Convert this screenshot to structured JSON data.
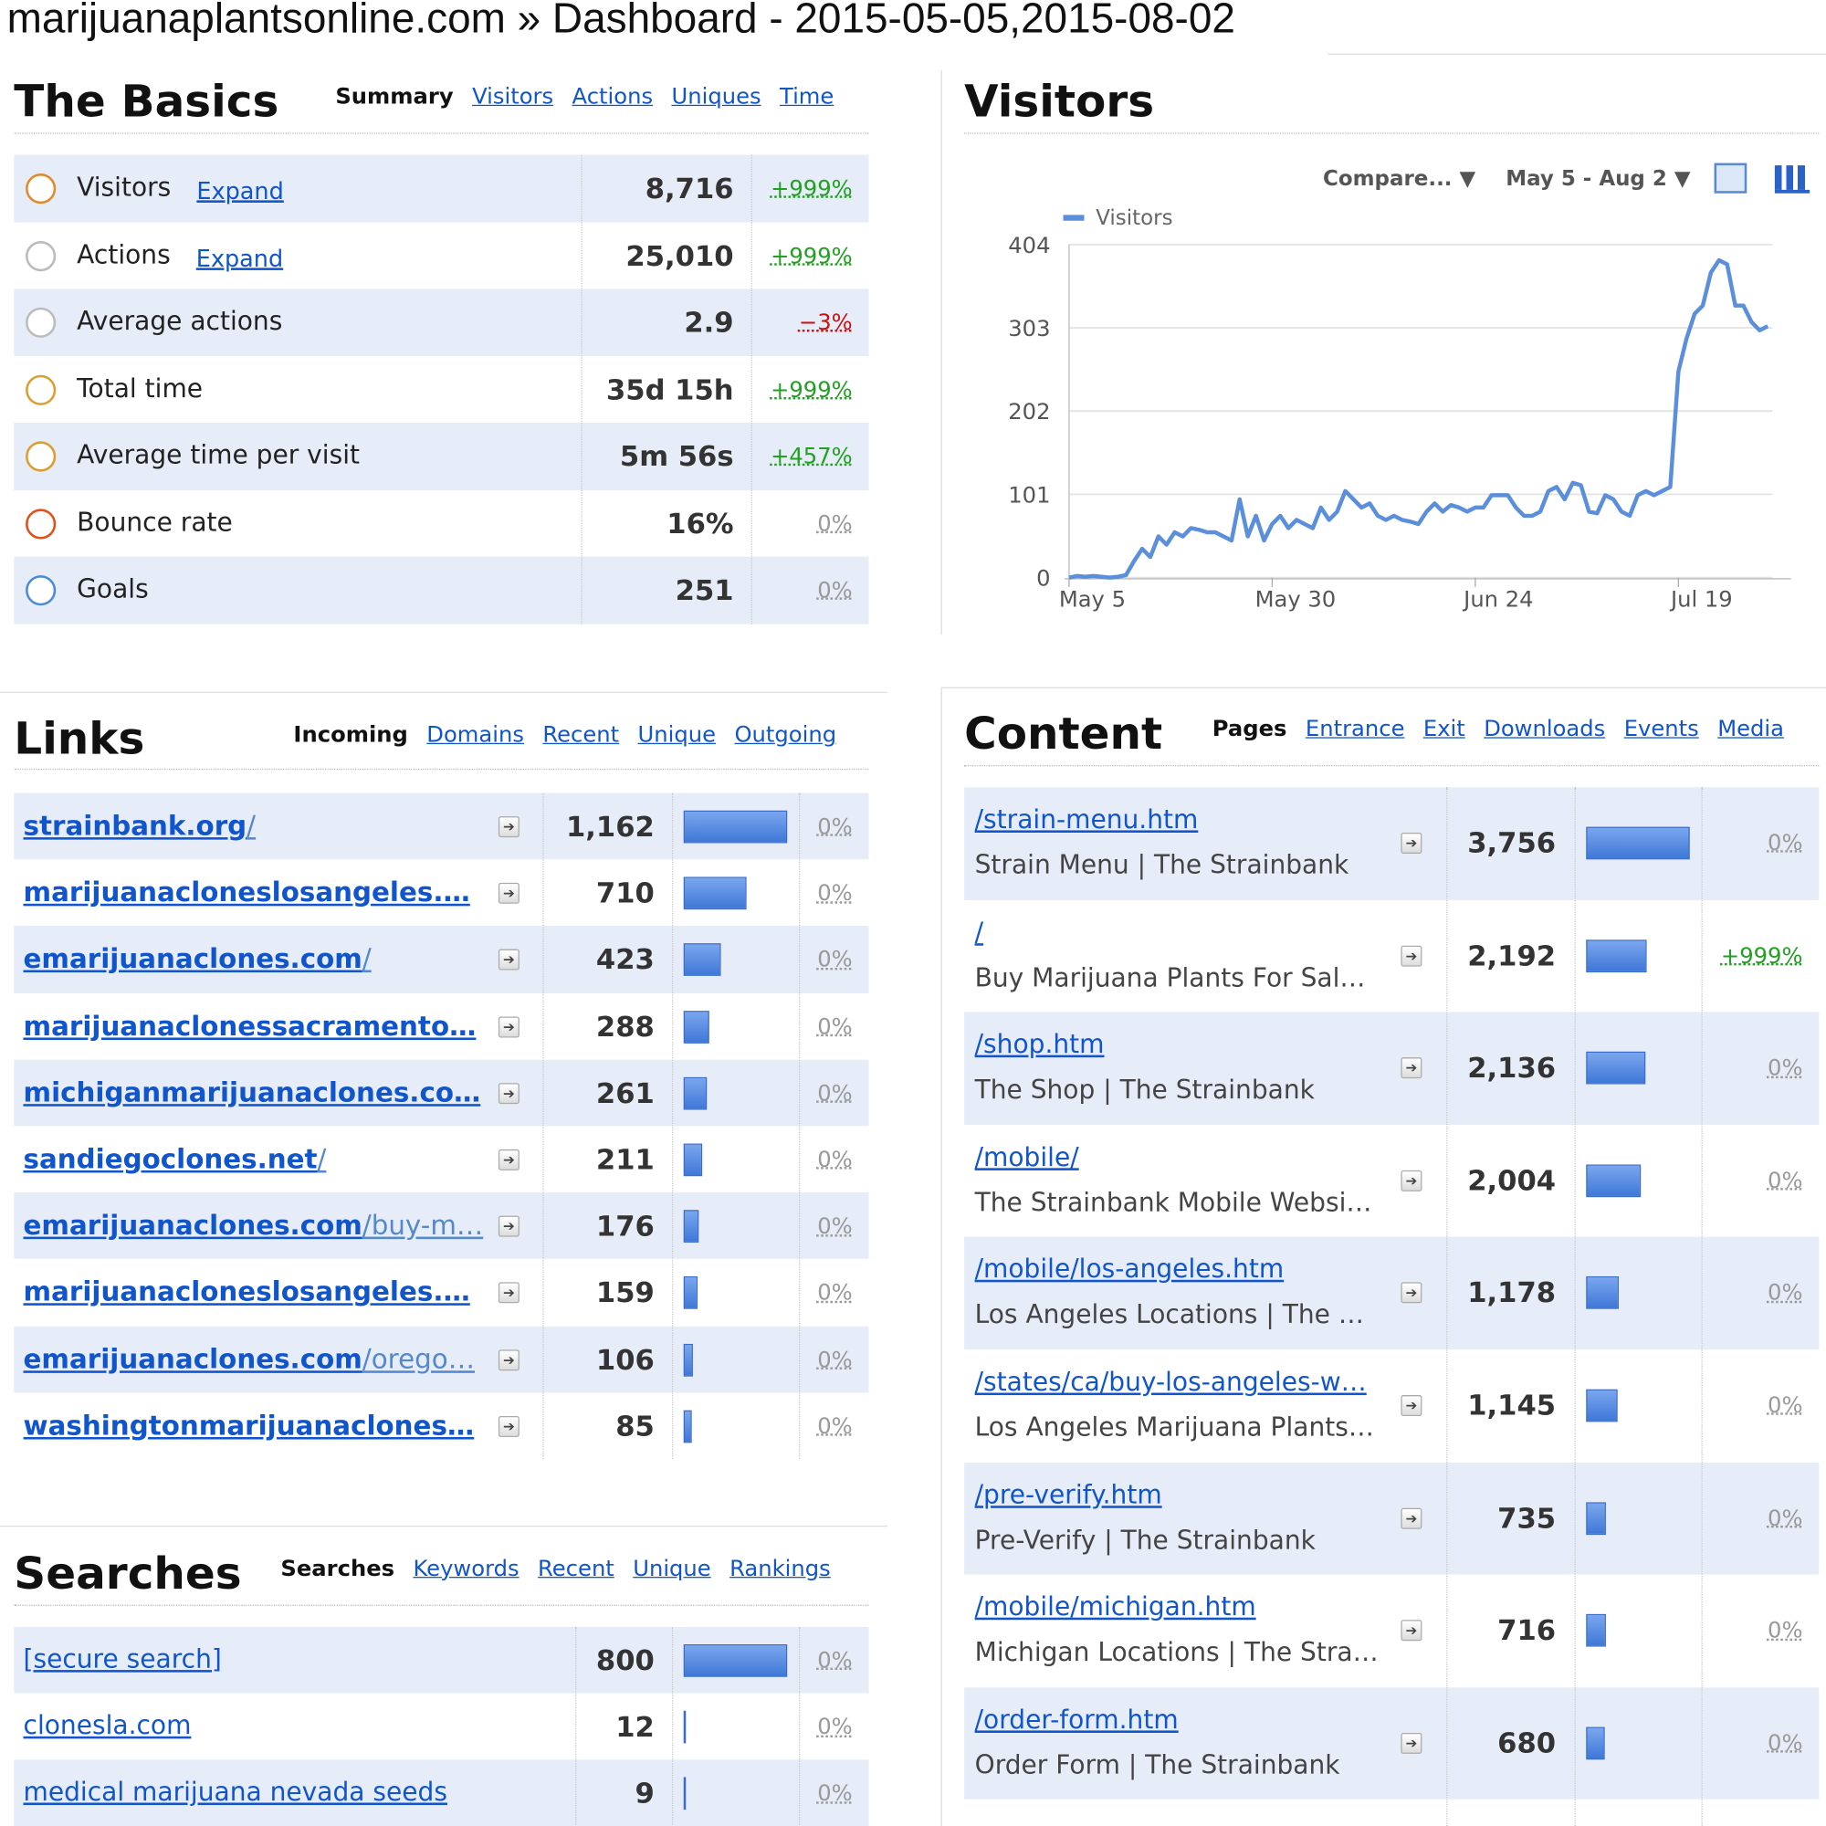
{
  "header": {
    "title": "marijuanaplantsonline.com » Dashboard - 2015-05-05,2015-08-02"
  },
  "basics": {
    "title": "The Basics",
    "tabs": [
      "Summary",
      "Visitors",
      "Actions",
      "Uniques",
      "Time"
    ],
    "expand": "Expand",
    "rows": [
      {
        "label": "Visitors",
        "value": "8,716",
        "change": "+999%",
        "expandable": true
      },
      {
        "label": "Actions",
        "value": "25,010",
        "change": "+999%",
        "expandable": true
      },
      {
        "label": "Average actions",
        "value": "2.9",
        "change": "−3%"
      },
      {
        "label": "Total time",
        "value": "35d 15h",
        "change": "+999%"
      },
      {
        "label": "Average time per visit",
        "value": "5m 56s",
        "change": "+457%"
      },
      {
        "label": "Bounce rate",
        "value": "16%",
        "change": "0%"
      },
      {
        "label": "Goals",
        "value": "251",
        "change": "0%"
      }
    ]
  },
  "visitors": {
    "title": "Visitors",
    "controls": [
      "Compare... ▼",
      "May 5 - Aug 2 ▼"
    ],
    "chart_data": {
      "type": "line",
      "series": [
        {
          "name": "Visitors",
          "color": "#5b8fdc",
          "values": [
            0,
            2,
            1,
            2,
            1,
            0,
            1,
            3,
            20,
            35,
            25,
            50,
            40,
            55,
            50,
            60,
            58,
            55,
            55,
            50,
            45,
            95,
            50,
            75,
            45,
            65,
            75,
            60,
            70,
            65,
            60,
            85,
            70,
            80,
            105,
            95,
            85,
            90,
            75,
            70,
            75,
            70,
            68,
            65,
            80,
            90,
            80,
            88,
            85,
            80,
            85,
            85,
            100,
            100,
            100,
            85,
            75,
            75,
            80,
            105,
            110,
            95,
            115,
            112,
            80,
            78,
            100,
            95,
            80,
            75,
            100,
            105,
            100,
            105,
            110,
            250,
            290,
            320,
            330,
            370,
            385,
            380,
            330,
            330,
            310,
            300,
            305
          ]
        }
      ],
      "xlim": [
        0,
        86
      ],
      "xticks": [
        {
          "value": 0,
          "label": "May 5"
        },
        {
          "value": 25,
          "label": "May 30"
        },
        {
          "value": 50,
          "label": "Jun 24"
        },
        {
          "value": 75,
          "label": "Jul 19"
        }
      ],
      "ylim": [
        0,
        404
      ],
      "yticks": [
        0,
        101,
        202,
        303,
        404
      ],
      "grid": true
    }
  },
  "links": {
    "title": "Links",
    "tabs": [
      "Incoming",
      "Domains",
      "Recent",
      "Unique",
      "Outgoing"
    ],
    "rows": [
      {
        "domain": "strainbank.org",
        "path": "/",
        "value": {
          "value": 1162,
          "label": "1,162"
        },
        "change": "0%"
      },
      {
        "domain": "marijuanacloneslosangeles.…",
        "value": {
          "value": 710,
          "label": "710"
        },
        "change": "0%"
      },
      {
        "domain": "emarijuanaclones.com",
        "path": "/",
        "value": {
          "value": 423,
          "label": "423"
        },
        "change": "0%"
      },
      {
        "domain": "marijuanaclonessacramento…",
        "value": {
          "value": 288,
          "label": "288"
        },
        "change": "0%"
      },
      {
        "domain": "michiganmarijuanaclones.co…",
        "value": {
          "value": 261,
          "label": "261"
        },
        "change": "0%"
      },
      {
        "domain": "sandiegoclones.net",
        "path": "/",
        "value": {
          "value": 211,
          "label": "211"
        },
        "change": "0%"
      },
      {
        "domain": "emarijuanaclones.com",
        "path": "/buy-m…",
        "value": {
          "value": 176,
          "label": "176"
        },
        "change": "0%"
      },
      {
        "domain": "marijuanacloneslosangeles.…",
        "value": {
          "value": 159,
          "label": "159"
        },
        "change": "0%"
      },
      {
        "domain": "emarijuanaclones.com",
        "path": "/orego…",
        "value": {
          "value": 106,
          "label": "106"
        },
        "change": "0%"
      },
      {
        "domain": "washingtonmarijuanaclones…",
        "value": {
          "value": 85,
          "label": "85"
        },
        "change": "0%"
      }
    ]
  },
  "searches": {
    "title": "Searches",
    "tabs": [
      "Searches",
      "Keywords",
      "Recent",
      "Unique",
      "Rankings"
    ],
    "rows": [
      {
        "term": "[secure search]",
        "value": {
          "value": 800,
          "label": "800"
        },
        "change": "0%"
      },
      {
        "term": "clonesla.com",
        "value": {
          "value": 12,
          "label": "12"
        },
        "change": "0%"
      },
      {
        "term": "medical marijuana nevada seeds",
        "value": {
          "value": 9,
          "label": "9"
        },
        "change": "0%"
      }
    ]
  },
  "content": {
    "title": "Content",
    "tabs": [
      "Pages",
      "Entrance",
      "Exit",
      "Downloads",
      "Events",
      "Media"
    ],
    "rows": [
      {
        "url": "/strain-menu.htm",
        "page_title": "Strain Menu | The Strainbank",
        "value": {
          "value": 3756,
          "label": "3,756"
        },
        "change": "0%"
      },
      {
        "url": "/",
        "page_title": "Buy Marijuana Plants For Sal…",
        "value": {
          "value": 2192,
          "label": "2,192"
        },
        "change": "+999%"
      },
      {
        "url": "/shop.htm",
        "page_title": "The Shop | The Strainbank",
        "value": {
          "value": 2136,
          "label": "2,136"
        },
        "change": "0%"
      },
      {
        "url": "/mobile/",
        "page_title": "The Strainbank Mobile Websi…",
        "value": {
          "value": 2004,
          "label": "2,004"
        },
        "change": "0%"
      },
      {
        "url": "/mobile/los-angeles.htm",
        "page_title": "Los Angeles Locations | The …",
        "value": {
          "value": 1178,
          "label": "1,178"
        },
        "change": "0%"
      },
      {
        "url": "/states/ca/buy-los-angeles-w…",
        "page_title": "Los Angeles Marijuana Plants…",
        "value": {
          "value": 1145,
          "label": "1,145"
        },
        "change": "0%"
      },
      {
        "url": "/pre-verify.htm",
        "page_title": "Pre-Verify | The Strainbank",
        "value": {
          "value": 735,
          "label": "735"
        },
        "change": "0%"
      },
      {
        "url": "/mobile/michigan.htm",
        "page_title": "Michigan Locations | The Stra…",
        "value": {
          "value": 716,
          "label": "716"
        },
        "change": "0%"
      },
      {
        "url": "/order-form.htm",
        "page_title": "Order Form | The Strainbank",
        "value": {
          "value": 680,
          "label": "680"
        },
        "change": "0%"
      }
    ]
  }
}
